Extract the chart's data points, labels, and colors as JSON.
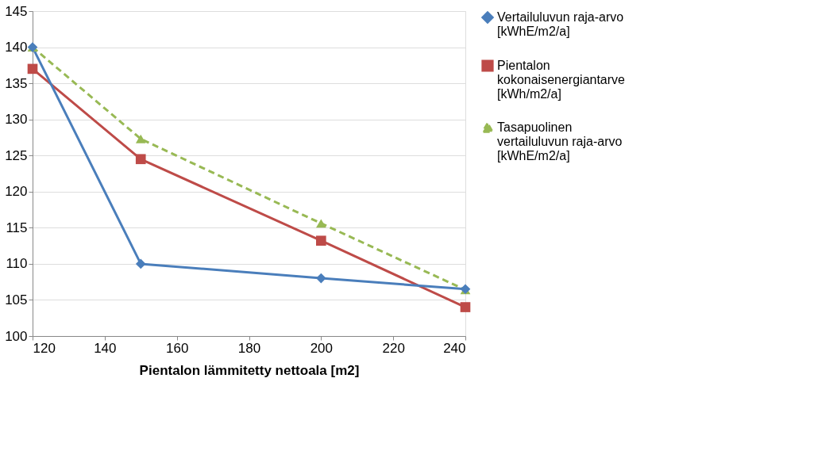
{
  "chart_data": {
    "type": "line",
    "xlabel": "Pientalon lämmitetty nettoala [m2]",
    "xlim": [
      120,
      240
    ],
    "xticks": [
      120,
      140,
      160,
      180,
      200,
      220,
      240
    ],
    "ylim": [
      100,
      145
    ],
    "yticks": [
      100,
      105,
      110,
      115,
      120,
      125,
      130,
      135,
      140,
      145
    ],
    "grid": "y",
    "legend": "right",
    "series": [
      {
        "name": "Vertailuluvun raja-arvo [kWhE/m2/a]",
        "color": "#4a7ebb",
        "x": [
          120,
          150,
          200,
          240
        ],
        "values": [
          140,
          110,
          108,
          106.5
        ],
        "marker": "diamond",
        "line_style": "solid"
      },
      {
        "name": "Pientalon kokonaisenergiantarve [kWh/m2/a]",
        "color": "#be4b48",
        "x": [
          120,
          150,
          200,
          240
        ],
        "values": [
          137,
          124.5,
          113.2,
          104
        ],
        "marker": "square",
        "line_style": "solid"
      },
      {
        "name": "Tasapuolinen vertailuluvun raja-arvo [kWhE/m2/a]",
        "color": "#98b954",
        "x": [
          120,
          150,
          200,
          240
        ],
        "values": [
          140,
          127.3,
          115.6,
          106.4
        ],
        "marker": "triangle",
        "line_style": "dashed"
      }
    ]
  }
}
